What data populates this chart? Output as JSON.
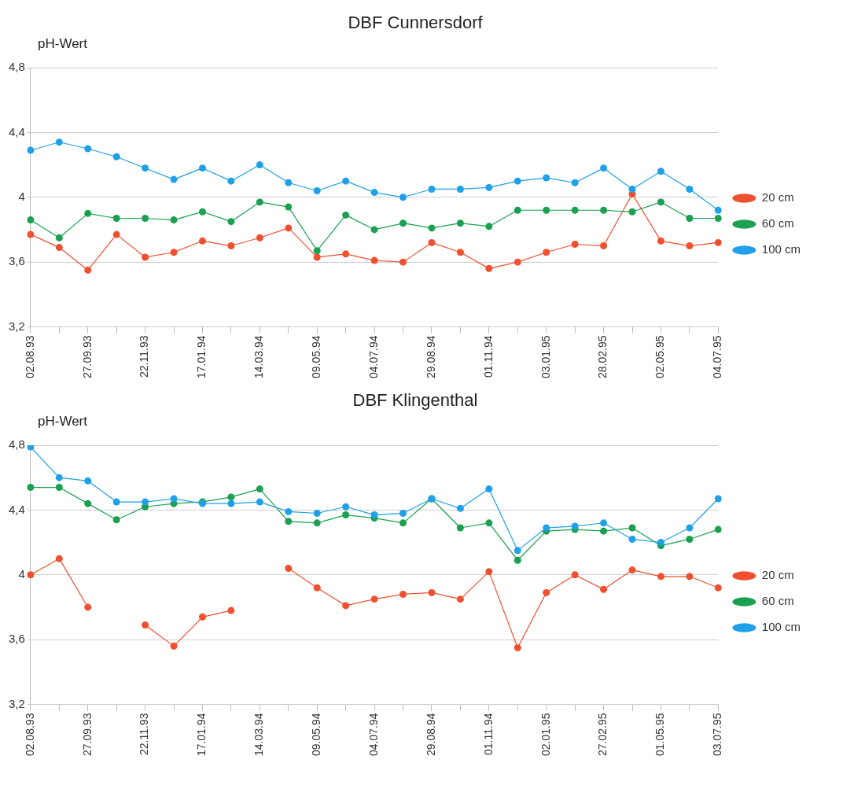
{
  "chart_data": [
    {
      "type": "line",
      "title": "DBF Cunnersdorf",
      "ylabel": "pH-Wert",
      "categories": [
        "02.08.93",
        null,
        "27.09.93",
        null,
        "22.11.93",
        null,
        "17.01.94",
        null,
        "14.03.94",
        null,
        "09.05.94",
        null,
        "04.07.94",
        null,
        "29.08.94",
        null,
        "01.11.94",
        null,
        "03.01.95",
        null,
        "28.02.95",
        null,
        "02.05.95",
        null,
        "04.07.95"
      ],
      "series": [
        {
          "name": "20 cm",
          "color": "#f0502f",
          "values": [
            3.77,
            3.69,
            3.55,
            3.77,
            3.63,
            3.66,
            3.73,
            3.7,
            3.75,
            3.81,
            3.63,
            3.65,
            3.61,
            3.6,
            3.72,
            3.66,
            3.56,
            3.6,
            3.66,
            3.71,
            3.7,
            4.02,
            3.73,
            3.7,
            3.72
          ]
        },
        {
          "name": "60 cm",
          "color": "#1aa050",
          "values": [
            3.86,
            3.75,
            3.9,
            3.87,
            3.87,
            3.86,
            3.91,
            3.85,
            3.97,
            3.94,
            3.67,
            3.89,
            3.8,
            3.84,
            3.81,
            3.84,
            3.82,
            3.92,
            3.92,
            3.92,
            3.92,
            3.91,
            3.97,
            3.87,
            3.87
          ]
        },
        {
          "name": "100 cm",
          "color": "#1fa0e8",
          "values": [
            4.29,
            4.34,
            4.3,
            4.25,
            4.18,
            4.11,
            4.18,
            4.1,
            4.2,
            4.09,
            4.04,
            4.1,
            4.03,
            4.0,
            4.05,
            4.05,
            4.06,
            4.1,
            4.12,
            4.09,
            4.18,
            4.05,
            4.16,
            4.05,
            3.92
          ]
        }
      ],
      "ylim": [
        3.2,
        4.8
      ],
      "yticks": [
        {
          "value": 3.2,
          "label": "3,2"
        },
        {
          "value": 3.6,
          "label": "3,6"
        },
        4,
        {
          "value": 4.4,
          "label": "4,4"
        },
        {
          "value": 4.8,
          "label": "4,8"
        }
      ],
      "grid": "y",
      "legend": "right",
      "marker": "circle",
      "line_style": "solid"
    },
    {
      "type": "line",
      "title": "DBF Klingenthal",
      "ylabel": "pH-Wert",
      "categories": [
        "02.08.93",
        null,
        "27.09.93",
        null,
        "22.11.93",
        null,
        "17.01.94",
        null,
        "14.03.94",
        null,
        "09.05.94",
        null,
        "04.07.94",
        null,
        "29.08.94",
        null,
        "01.11.94",
        null,
        "02.01.95",
        null,
        "27.02.95",
        null,
        "01.05.95",
        null,
        "03.07.95"
      ],
      "series": [
        {
          "name": "20 cm",
          "color": "#f0502f",
          "values": [
            4.0,
            4.1,
            3.8,
            null,
            3.69,
            3.56,
            3.74,
            3.78,
            null,
            4.04,
            3.92,
            3.81,
            3.85,
            3.88,
            3.89,
            3.85,
            4.02,
            3.55,
            3.89,
            4.0,
            3.91,
            4.03,
            3.99,
            3.99,
            3.92
          ]
        },
        {
          "name": "60 cm",
          "color": "#1aa050",
          "values": [
            4.54,
            4.54,
            4.44,
            4.34,
            4.42,
            4.44,
            4.45,
            4.48,
            4.53,
            4.33,
            4.32,
            4.37,
            4.35,
            4.32,
            4.47,
            4.29,
            4.32,
            4.09,
            4.27,
            4.28,
            4.27,
            4.29,
            4.18,
            4.22,
            4.28
          ]
        },
        {
          "name": "100 cm",
          "color": "#1fa0e8",
          "values": [
            4.79,
            4.6,
            4.58,
            4.45,
            4.45,
            4.47,
            4.44,
            4.44,
            4.45,
            4.39,
            4.38,
            4.42,
            4.37,
            4.38,
            4.47,
            4.41,
            4.53,
            4.15,
            4.29,
            4.3,
            4.32,
            4.22,
            4.2,
            4.29,
            4.47
          ]
        }
      ],
      "ylim": [
        3.2,
        4.8
      ],
      "yticks": [
        {
          "value": 3.2,
          "label": "3,2"
        },
        {
          "value": 3.6,
          "label": "3,6"
        },
        4,
        {
          "value": 4.4,
          "label": "4,4"
        },
        {
          "value": 4.8,
          "label": "4,8"
        }
      ],
      "grid": "y",
      "legend": "right",
      "marker": "circle",
      "line_style": "solid"
    }
  ]
}
